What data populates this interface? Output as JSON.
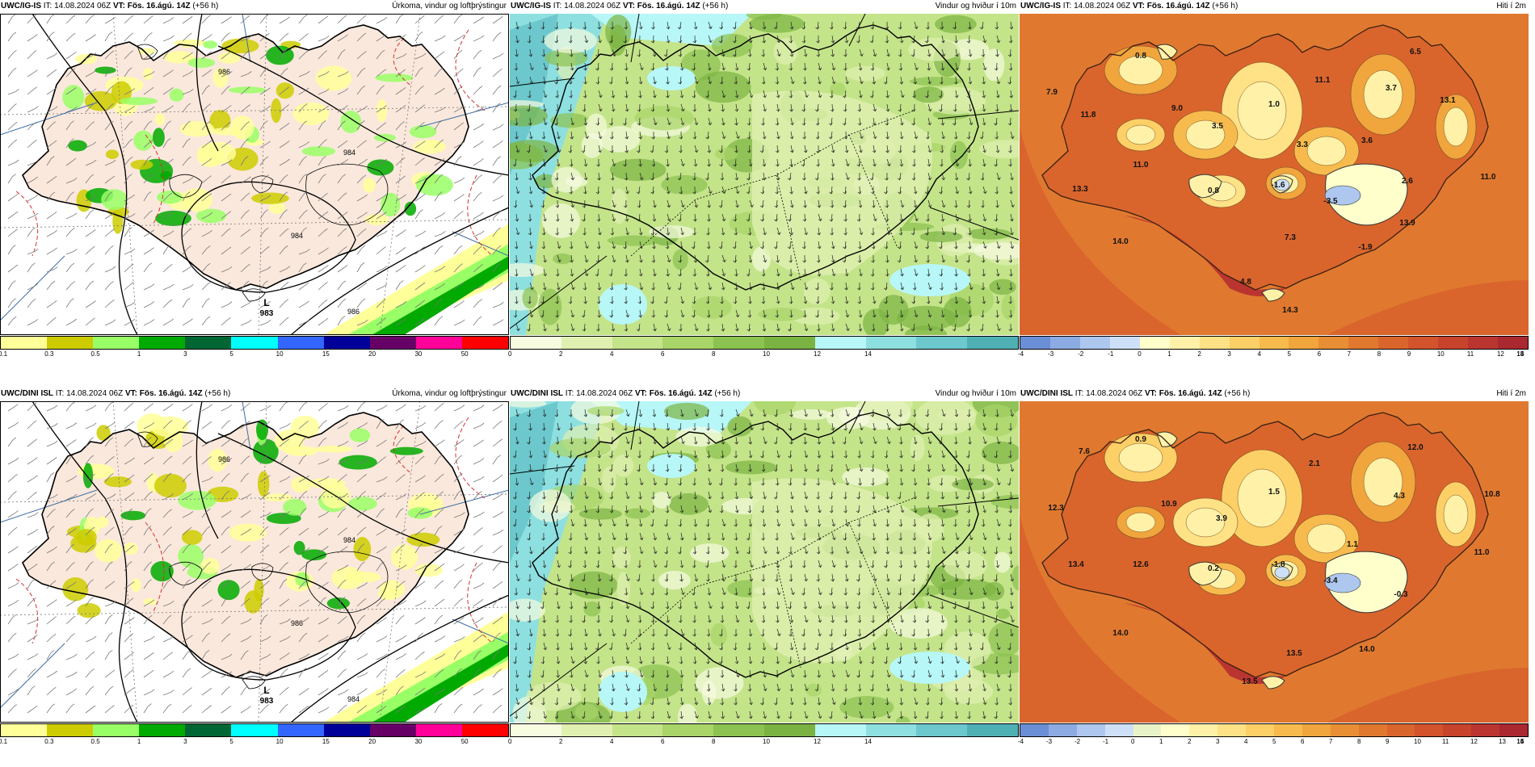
{
  "panels": [
    {
      "id": "p1",
      "model": "UWC/IG-IS",
      "it_label": "IT:",
      "it": "14.08.2024 06Z",
      "vt_label": "VT:",
      "vt": "Fös. 16.ágú. 14Z",
      "lead": "(+56 h)",
      "title": "Úrkoma, vindur og loftþrýstingur",
      "type": "precip",
      "colorbar": {
        "colors": [
          "#ffff99",
          "#cccc00",
          "#99ff66",
          "#00aa00",
          "#006633",
          "#00ffff",
          "#3366ff",
          "#000099",
          "#660066",
          "#ff0099",
          "#ff0000"
        ],
        "ticks": [
          "0.1",
          "0.3",
          "0.5",
          "1",
          "3",
          "5",
          "10",
          "15",
          "20",
          "30",
          "50"
        ]
      },
      "low": {
        "letter": "L",
        "value": "983"
      },
      "isobars": [
        "986",
        "984",
        "984",
        "986"
      ]
    },
    {
      "id": "p2",
      "model": "UWC/IG-IS",
      "it_label": "IT:",
      "it": "14.08.2024 06Z",
      "vt_label": "VT:",
      "vt": "Fös. 16.ágú. 14Z",
      "lead": "(+56 h)",
      "title": "Vindur og hviður í 10m",
      "type": "wind",
      "colorbar": {
        "colors": [
          "#f7fbe0",
          "#e0f0b0",
          "#c4e48a",
          "#a8d468",
          "#8cc250",
          "#7ab342",
          "#b7f7f7",
          "#8ee0e0",
          "#6cc8cc",
          "#4fb0b4"
        ],
        "ticks": [
          "0",
          "2",
          "4",
          "6",
          "8",
          "10",
          "12",
          "14"
        ]
      }
    },
    {
      "id": "p3",
      "model": "UWC/IG-IS",
      "it_label": "IT:",
      "it": "14.08.2024 06Z",
      "vt_label": "VT:",
      "vt": "Fös. 16.ágú. 14Z",
      "lead": "(+56 h)",
      "title": "Hiti í 2m",
      "type": "temp",
      "colorbar": {
        "colors": [
          "#6b8fd6",
          "#8cabe3",
          "#adc7ef",
          "#cde0f7",
          "#ffffcc",
          "#fff2a8",
          "#ffe285",
          "#fcd066",
          "#f7bb4d",
          "#f0a53d",
          "#e88f35",
          "#e0792f",
          "#d9652d",
          "#d2532c",
          "#c8432c",
          "#bb3530",
          "#aa2830"
        ],
        "ticks": [
          "-4",
          "-3",
          "-2",
          "-1",
          "0",
          "1",
          "2",
          "3",
          "4",
          "5",
          "6",
          "7",
          "8",
          "9",
          "10",
          "11",
          "12",
          "13",
          "14",
          "15"
        ]
      },
      "values": [
        {
          "t": "0.8",
          "x": 150,
          "y": 55
        },
        {
          "t": "6.5",
          "x": 490,
          "y": 50
        },
        {
          "t": "7.9",
          "x": 40,
          "y": 100
        },
        {
          "t": "11.1",
          "x": 375,
          "y": 85
        },
        {
          "t": "3.7",
          "x": 460,
          "y": 95
        },
        {
          "t": "11.8",
          "x": 85,
          "y": 128
        },
        {
          "t": "9.0",
          "x": 195,
          "y": 120
        },
        {
          "t": "1.0",
          "x": 315,
          "y": 115
        },
        {
          "t": "13.1",
          "x": 530,
          "y": 110
        },
        {
          "t": "3.5",
          "x": 245,
          "y": 142
        },
        {
          "t": "3.6",
          "x": 430,
          "y": 160
        },
        {
          "t": "3.3",
          "x": 350,
          "y": 165
        },
        {
          "t": "11.0",
          "x": 150,
          "y": 190
        },
        {
          "t": "2.6",
          "x": 480,
          "y": 210
        },
        {
          "t": "11.0",
          "x": 580,
          "y": 205
        },
        {
          "t": "13.3",
          "x": 75,
          "y": 220
        },
        {
          "t": "0.8",
          "x": 240,
          "y": 222
        },
        {
          "t": "-1.6",
          "x": 320,
          "y": 215
        },
        {
          "t": "-3.5",
          "x": 385,
          "y": 235
        },
        {
          "t": "13.9",
          "x": 480,
          "y": 262
        },
        {
          "t": "7.3",
          "x": 335,
          "y": 280
        },
        {
          "t": "-1.9",
          "x": 428,
          "y": 292
        },
        {
          "t": "14.0",
          "x": 125,
          "y": 285
        },
        {
          "t": "4.8",
          "x": 280,
          "y": 335
        },
        {
          "t": "14.3",
          "x": 335,
          "y": 370
        }
      ]
    },
    {
      "id": "p4",
      "model": "UWC/DINI ISL",
      "it_label": "IT:",
      "it": "14.08.2024 06Z",
      "vt_label": "VT:",
      "vt": "Fös. 16.ágú. 14Z",
      "lead": "(+56 h)",
      "title": "Úrkoma, vindur og loftþrýstingur",
      "type": "precip",
      "colorbar": {
        "colors": [
          "#ffff99",
          "#cccc00",
          "#99ff66",
          "#00aa00",
          "#006633",
          "#00ffff",
          "#3366ff",
          "#000099",
          "#660066",
          "#ff0099",
          "#ff0000"
        ],
        "ticks": [
          "0.1",
          "0.3",
          "0.5",
          "1",
          "3",
          "5",
          "10",
          "15",
          "20",
          "30",
          "50"
        ]
      },
      "low": {
        "letter": "L",
        "value": "983"
      },
      "isobars": [
        "986",
        "984",
        "986",
        "984"
      ]
    },
    {
      "id": "p5",
      "model": "UWC/DINI ISL",
      "it_label": "IT:",
      "it": "14.08.2024 06Z",
      "vt_label": "VT:",
      "vt": "Fös. 16.ágú. 14Z",
      "lead": "(+56 h)",
      "title": "Vindur og hviður í 10m",
      "type": "wind",
      "colorbar": {
        "colors": [
          "#f7fbe0",
          "#e0f0b0",
          "#c4e48a",
          "#a8d468",
          "#8cc250",
          "#7ab342",
          "#b7f7f7",
          "#8ee0e0",
          "#6cc8cc",
          "#4fb0b4"
        ],
        "ticks": [
          "0",
          "2",
          "4",
          "6",
          "8",
          "10",
          "12",
          "14"
        ]
      }
    },
    {
      "id": "p6",
      "model": "UWC/DINI ISL",
      "it_label": "IT:",
      "it": "14.08.2024 06Z",
      "vt_label": "VT:",
      "vt": "Fös. 16.ágú. 14Z",
      "lead": "(+56 h)",
      "title": "Hiti í 2m",
      "type": "temp",
      "colorbar": {
        "colors": [
          "#6b8fd6",
          "#8cabe3",
          "#adc7ef",
          "#cde0f7",
          "#e9f3c8",
          "#ffffcc",
          "#fff2a8",
          "#ffe285",
          "#fcd066",
          "#f7bb4d",
          "#f0a53d",
          "#e88f35",
          "#e0792f",
          "#d9652d",
          "#d2532c",
          "#c8432c",
          "#bb3530",
          "#aa2830"
        ],
        "ticks": [
          "-4",
          "-3",
          "-2",
          "-1",
          "0",
          "1",
          "2",
          "3",
          "4",
          "5",
          "6",
          "7",
          "8",
          "9",
          "10",
          "11",
          "12",
          "13",
          "14",
          "15",
          "16"
        ]
      },
      "values": [
        {
          "t": "0.9",
          "x": 150,
          "y": 50
        },
        {
          "t": "12.0",
          "x": 490,
          "y": 60
        },
        {
          "t": "7.6",
          "x": 80,
          "y": 65
        },
        {
          "t": "2.1",
          "x": 365,
          "y": 80
        },
        {
          "t": "1.5",
          "x": 315,
          "y": 115
        },
        {
          "t": "4.3",
          "x": 470,
          "y": 120
        },
        {
          "t": "10.8",
          "x": 585,
          "y": 118
        },
        {
          "t": "12.3",
          "x": 45,
          "y": 135
        },
        {
          "t": "10.9",
          "x": 185,
          "y": 130
        },
        {
          "t": "3.9",
          "x": 250,
          "y": 148
        },
        {
          "t": "1.1",
          "x": 412,
          "y": 180
        },
        {
          "t": "11.0",
          "x": 572,
          "y": 190
        },
        {
          "t": "13.4",
          "x": 70,
          "y": 205
        },
        {
          "t": "12.6",
          "x": 150,
          "y": 205
        },
        {
          "t": "0.2",
          "x": 240,
          "y": 210
        },
        {
          "t": "-1.8",
          "x": 320,
          "y": 205
        },
        {
          "t": "-3.4",
          "x": 385,
          "y": 225
        },
        {
          "t": "-0.3",
          "x": 472,
          "y": 242
        },
        {
          "t": "14.0",
          "x": 125,
          "y": 290
        },
        {
          "t": "14.0",
          "x": 430,
          "y": 310
        },
        {
          "t": "13.5",
          "x": 340,
          "y": 315
        },
        {
          "t": "13.5",
          "x": 285,
          "y": 350
        }
      ]
    }
  ]
}
